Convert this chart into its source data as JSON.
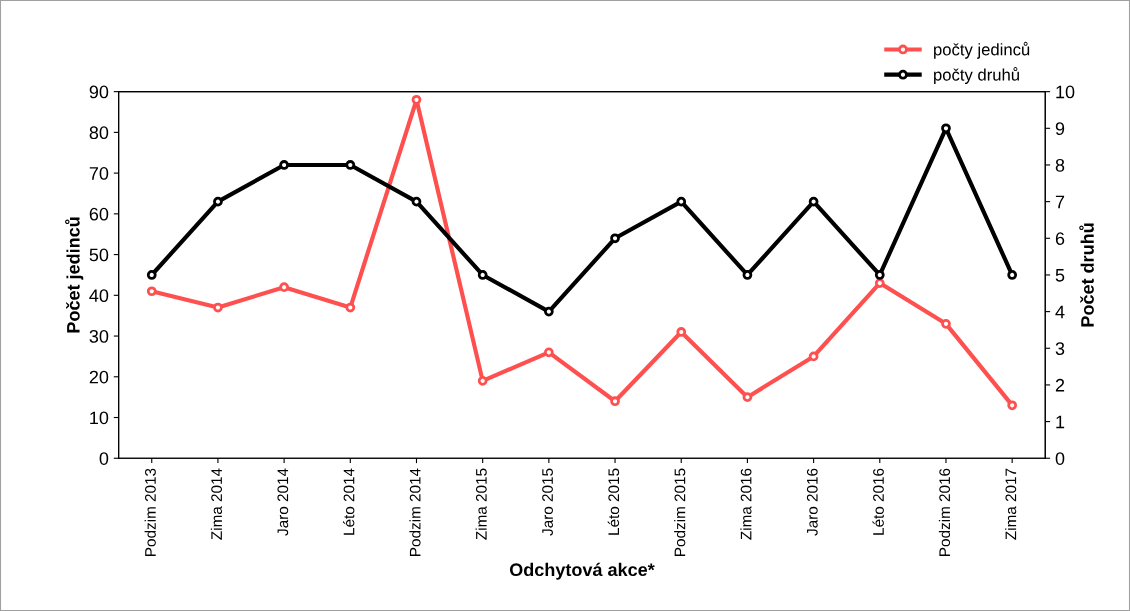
{
  "chart_data": {
    "type": "line",
    "xlabel": "Odchytová akce*",
    "ylabel": "Počet jedinců",
    "y2label": "Počet druhů",
    "categories": [
      "Podzim 2013",
      "Zima 2014",
      "Jaro 2014",
      "Léto 2014",
      "Podzim 2014",
      "Zima 2015",
      "Jaro 2015",
      "Léto 2015",
      "Podzim 2015",
      "Zima 2016",
      "Jaro 2016",
      "Léto 2016",
      "Podzim 2016",
      "Zima 2017"
    ],
    "series": [
      {
        "name": "počty jedinců",
        "color": "#ff5050",
        "values": [
          41,
          37,
          42,
          37,
          88,
          19,
          26,
          14,
          31,
          15,
          25,
          43,
          33,
          13
        ]
      },
      {
        "name": "počty druhů",
        "color": "#000000",
        "axis": "y2",
        "values": [
          5,
          7,
          8,
          8,
          7,
          5,
          4,
          6,
          7,
          5,
          7,
          5,
          9,
          5
        ]
      }
    ],
    "ylim": [
      0,
      90
    ],
    "yticks": [
      0,
      10,
      20,
      30,
      40,
      50,
      60,
      70,
      80,
      90
    ],
    "y2lim": [
      0,
      10
    ],
    "y2ticks": [
      0,
      1,
      2,
      3,
      4,
      5,
      6,
      7,
      8,
      9,
      10
    ],
    "grid": false,
    "legend": "top right",
    "marker": "circle",
    "line_style": "solid"
  }
}
